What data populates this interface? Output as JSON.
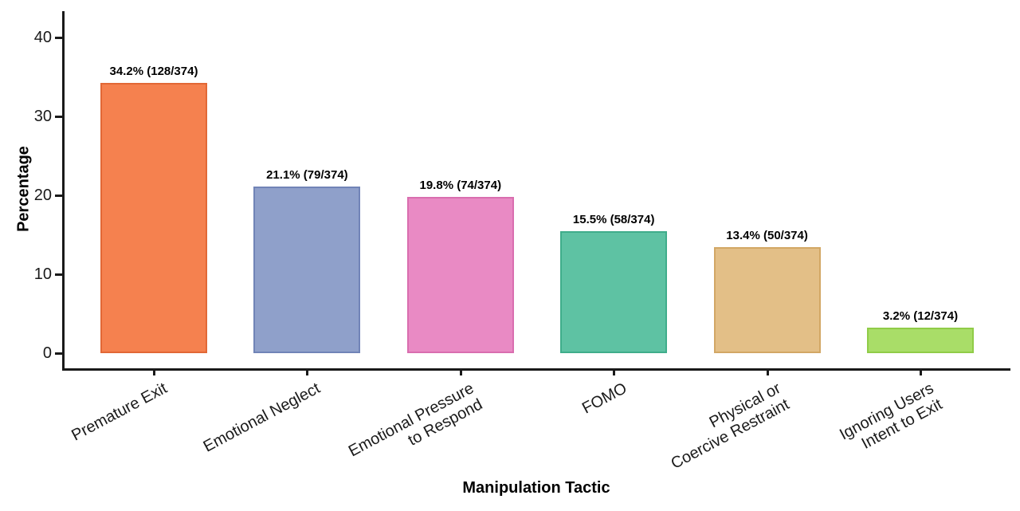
{
  "colors": {
    "background": "#ffffff",
    "axis": "#1a1a1a",
    "text": "#000000"
  },
  "chart_data": {
    "type": "bar",
    "title": "",
    "xlabel": "Manipulation Tactic",
    "ylabel": "Percentage",
    "ylim": [
      0,
      43.3
    ],
    "yticks": [
      0,
      10,
      20,
      30,
      40
    ],
    "grid": false,
    "legend": false,
    "category_label_rotation_deg": 28,
    "categories": [
      "Premature Exit",
      "Emotional Neglect",
      "Emotional Pressure\nto Respond",
      "FOMO",
      "Physical or\nCoercive Restraint",
      "Ignoring Users\nIntent to Exit"
    ],
    "values": [
      34.2,
      21.1,
      19.8,
      15.5,
      13.4,
      3.2
    ],
    "counts": [
      128,
      79,
      74,
      58,
      50,
      12
    ],
    "denominator": 374,
    "bar_labels": [
      "34.2% (128/374)",
      "21.1% (79/374)",
      "19.8% (74/374)",
      "15.5% (58/374)",
      "13.4% (50/374)",
      "3.2% (12/374)"
    ],
    "bar_colors": [
      "#F5814F",
      "#8FA0CA",
      "#E98AC4",
      "#5EC2A3",
      "#E3BF87",
      "#A9DD68"
    ],
    "bar_border_colors": [
      "#E26836",
      "#7184B7",
      "#D96EAF",
      "#3FAD8B",
      "#D2A765",
      "#90CC48"
    ]
  }
}
